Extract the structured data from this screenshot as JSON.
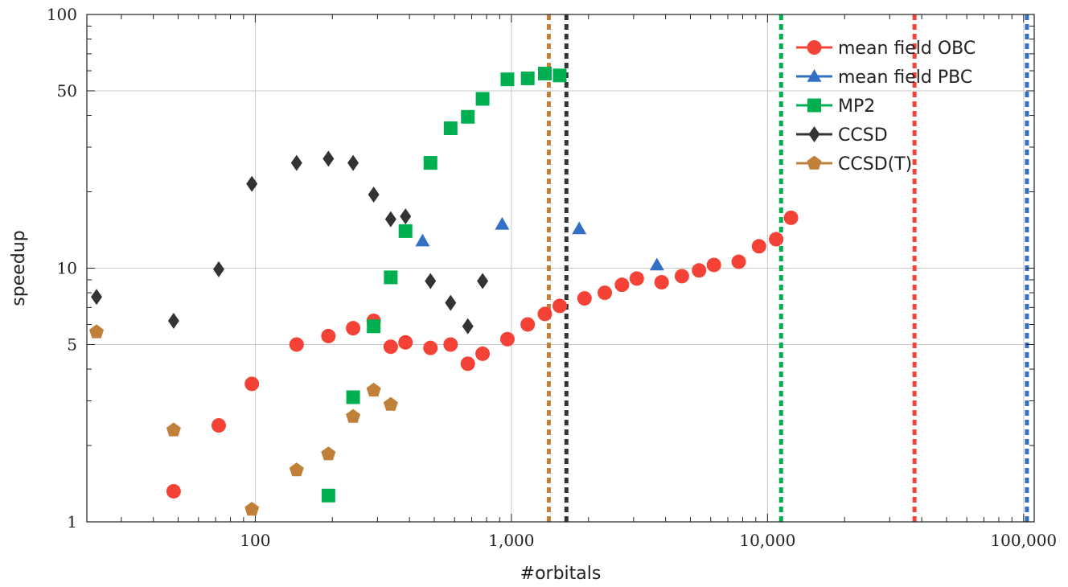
{
  "chart_data": {
    "type": "scatter",
    "xscale": "log",
    "yscale": "log",
    "xlim": [
      22,
      110000
    ],
    "ylim": [
      1,
      100
    ],
    "xlabel": "#orbitals",
    "ylabel": "speedup",
    "grid": true,
    "legend_position": "top-right",
    "x_tick_labels": [
      {
        "value": 100,
        "label": "100"
      },
      {
        "value": 1000,
        "label": "1,000"
      },
      {
        "value": 10000,
        "label": "10,000"
      },
      {
        "value": 100000,
        "label": "100,000"
      }
    ],
    "y_tick_labels": [
      {
        "value": 1,
        "label": "1"
      },
      {
        "value": 5,
        "label": "5"
      },
      {
        "value": 10,
        "label": "10"
      },
      {
        "value": 50,
        "label": "50"
      },
      {
        "value": 100,
        "label": "100"
      }
    ],
    "series": [
      {
        "name": "mean field OBC",
        "marker": "circle",
        "color": "#f44336",
        "points": [
          [
            48,
            1.32
          ],
          [
            72,
            2.4
          ],
          [
            97,
            3.5
          ],
          [
            145,
            5.0
          ],
          [
            193,
            5.4
          ],
          [
            241,
            5.8
          ],
          [
            290,
            6.2
          ],
          [
            338,
            4.9
          ],
          [
            386,
            5.1
          ],
          [
            483,
            4.85
          ],
          [
            579,
            5.0
          ],
          [
            676,
            4.2
          ],
          [
            772,
            4.6
          ],
          [
            965,
            5.25
          ],
          [
            1158,
            6.0
          ],
          [
            1351,
            6.6
          ],
          [
            1544,
            7.1
          ],
          [
            1930,
            7.6
          ],
          [
            2316,
            8.0
          ],
          [
            2702,
            8.6
          ],
          [
            3088,
            9.1
          ],
          [
            3860,
            8.8
          ],
          [
            4632,
            9.3
          ],
          [
            5404,
            9.8
          ],
          [
            6176,
            10.3
          ],
          [
            7720,
            10.6
          ],
          [
            9264,
            12.2
          ],
          [
            10808,
            13.0
          ],
          [
            12352,
            15.8
          ]
        ]
      },
      {
        "name": "mean field PBC",
        "marker": "triangle",
        "color": "#3370c4",
        "points": [
          [
            450,
            12.8
          ],
          [
            920,
            14.9
          ],
          [
            1840,
            14.3
          ],
          [
            3700,
            10.3
          ]
        ]
      },
      {
        "name": "MP2",
        "marker": "square",
        "color": "#00b050",
        "points": [
          [
            193,
            1.27
          ],
          [
            241,
            3.1
          ],
          [
            290,
            5.9
          ],
          [
            338,
            9.2
          ],
          [
            386,
            14.0
          ],
          [
            483,
            26.0
          ],
          [
            579,
            35.6
          ],
          [
            676,
            39.5
          ],
          [
            772,
            46.5
          ],
          [
            965,
            55.5
          ],
          [
            1158,
            56.0
          ],
          [
            1351,
            58.5
          ],
          [
            1544,
            57.5
          ]
        ]
      },
      {
        "name": "CCSD",
        "marker": "diamond",
        "color": "#333333",
        "points": [
          [
            24,
            7.7
          ],
          [
            48,
            6.2
          ],
          [
            72,
            9.9
          ],
          [
            97,
            21.5
          ],
          [
            145,
            26.0
          ],
          [
            193,
            27.0
          ],
          [
            241,
            26.0
          ],
          [
            290,
            19.5
          ],
          [
            338,
            15.6
          ],
          [
            386,
            16.0
          ],
          [
            483,
            8.9
          ],
          [
            579,
            7.3
          ],
          [
            676,
            5.9
          ],
          [
            772,
            8.9
          ]
        ]
      },
      {
        "name": "CCSD(T)",
        "marker": "pentagon",
        "color": "#c0803a",
        "points": [
          [
            24,
            5.6
          ],
          [
            48,
            2.3
          ],
          [
            97,
            1.12
          ],
          [
            145,
            1.6
          ],
          [
            193,
            1.85
          ],
          [
            241,
            2.6
          ],
          [
            290,
            3.3
          ],
          [
            338,
            2.9
          ]
        ]
      }
    ],
    "vertical_lines": [
      {
        "x": 1400,
        "color": "#c0803a"
      },
      {
        "x": 1640,
        "color": "#333333"
      },
      {
        "x": 11300,
        "color": "#00b050"
      },
      {
        "x": 37500,
        "color": "#f44336"
      },
      {
        "x": 103000,
        "color": "#3370c4"
      }
    ]
  }
}
